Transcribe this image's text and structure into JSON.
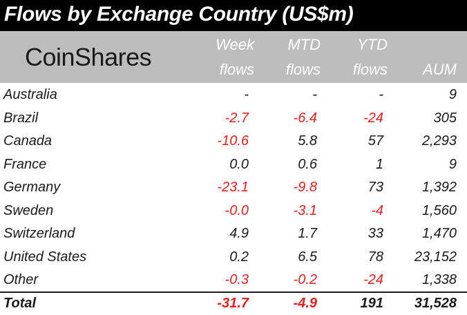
{
  "title": "Flows by Exchange Country (US$m)",
  "logo": "CoinShares",
  "headers": {
    "week": [
      "Week",
      "flows"
    ],
    "mtd": [
      "MTD",
      "flows"
    ],
    "ytd": [
      "YTD",
      "flows"
    ],
    "aum": "AUM"
  },
  "rows": [
    {
      "country": "Australia",
      "week": "-",
      "mtd": "-",
      "ytd": "-",
      "aum": "9"
    },
    {
      "country": "Brazil",
      "week": "-2.7",
      "mtd": "-6.4",
      "ytd": "-24",
      "aum": "305"
    },
    {
      "country": "Canada",
      "week": "-10.6",
      "mtd": "5.8",
      "ytd": "57",
      "aum": "2,293"
    },
    {
      "country": "France",
      "week": "0.0",
      "mtd": "0.6",
      "ytd": "1",
      "aum": "9"
    },
    {
      "country": "Germany",
      "week": "-23.1",
      "mtd": "-9.8",
      "ytd": "73",
      "aum": "1,392"
    },
    {
      "country": "Sweden",
      "week": "-0.0",
      "mtd": "-3.1",
      "ytd": "-4",
      "aum": "1,560"
    },
    {
      "country": "Switzerland",
      "week": "4.9",
      "mtd": "1.7",
      "ytd": "33",
      "aum": "1,470"
    },
    {
      "country": "United States",
      "week": "0.2",
      "mtd": "6.5",
      "ytd": "78",
      "aum": "23,152"
    },
    {
      "country": "Other",
      "week": "-0.3",
      "mtd": "-0.2",
      "ytd": "-24",
      "aum": "1,338"
    }
  ],
  "total": {
    "country": "Total",
    "week": "-31.7",
    "mtd": "-4.9",
    "ytd": "191",
    "aum": "31,528"
  },
  "colors": {
    "title_bg": "#000000",
    "header_bg": "#bdbdbd",
    "negative": "#e02020",
    "text": "#1a1a1a"
  }
}
